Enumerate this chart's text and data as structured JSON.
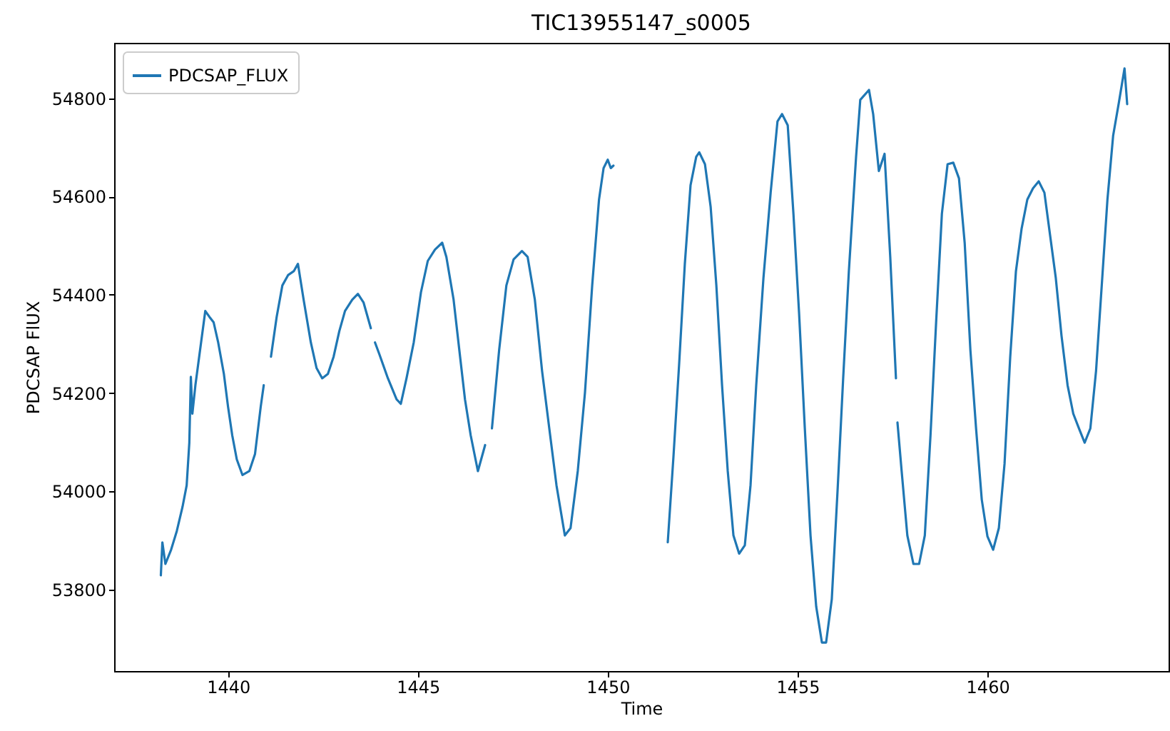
{
  "chart_data": {
    "type": "line",
    "title": "TIC13955147_s0005",
    "xlabel": "Time",
    "ylabel": "PDCSAP FlUX",
    "legend": "top left",
    "grid": false,
    "xlim": [
      1437.0,
      1464.77
    ],
    "ylim": [
      53634,
      54913
    ],
    "xticks": [
      1440,
      1445,
      1450,
      1455,
      1460
    ],
    "yticks": [
      53800,
      54000,
      54200,
      54400,
      54600,
      54800
    ],
    "series": [
      {
        "name": "PDCSAP_FLUX",
        "color": "#1f77b4",
        "x": [
          1438.23,
          1438.27,
          1438.35,
          1438.5,
          1438.65,
          1438.8,
          1438.91,
          1438.98,
          1439.02,
          1439.06,
          1439.14,
          1439.25,
          1439.4,
          1439.51,
          1439.62,
          1439.74,
          1439.89,
          1440.0,
          1440.11,
          1440.23,
          1440.38,
          1440.56,
          1440.71,
          1440.86,
          1440.94,
          1441.03,
          1441.13,
          1441.28,
          1441.43,
          1441.58,
          1441.73,
          1441.84,
          1441.99,
          1442.18,
          1442.33,
          1442.48,
          1442.63,
          1442.78,
          1442.93,
          1443.08,
          1443.27,
          1443.42,
          1443.57,
          1443.76,
          1443.82,
          1443.87,
          1443.98,
          1444.21,
          1444.44,
          1444.55,
          1444.7,
          1444.89,
          1445.08,
          1445.26,
          1445.45,
          1445.64,
          1445.75,
          1445.94,
          1446.09,
          1446.24,
          1446.39,
          1446.58,
          1446.77,
          1446.86,
          1446.95,
          1447.14,
          1447.33,
          1447.52,
          1447.74,
          1447.89,
          1448.08,
          1448.27,
          1448.46,
          1448.65,
          1448.87,
          1449.02,
          1449.21,
          1449.4,
          1449.59,
          1449.77,
          1449.89,
          1450.0,
          1450.08,
          1450.15,
          1450.9,
          1451.58,
          1451.73,
          1451.88,
          1452.03,
          1452.18,
          1452.33,
          1452.41,
          1452.56,
          1452.71,
          1452.86,
          1453.01,
          1453.16,
          1453.31,
          1453.46,
          1453.61,
          1453.76,
          1453.91,
          1454.1,
          1454.29,
          1454.47,
          1454.59,
          1454.74,
          1454.89,
          1455.04,
          1455.19,
          1455.34,
          1455.49,
          1455.64,
          1455.75,
          1455.9,
          1456.05,
          1456.2,
          1456.35,
          1456.54,
          1456.65,
          1456.88,
          1456.99,
          1457.14,
          1457.29,
          1457.44,
          1457.59,
          1457.61,
          1457.63,
          1457.74,
          1457.89,
          1458.05,
          1458.2,
          1458.35,
          1458.5,
          1458.65,
          1458.8,
          1458.95,
          1459.1,
          1459.25,
          1459.4,
          1459.55,
          1459.7,
          1459.85,
          1460.0,
          1460.15,
          1460.3,
          1460.45,
          1460.6,
          1460.75,
          1460.9,
          1461.05,
          1461.2,
          1461.35,
          1461.5,
          1461.65,
          1461.8,
          1461.95,
          1462.11,
          1462.26,
          1462.41,
          1462.56,
          1462.71,
          1462.86,
          1463.01,
          1463.16,
          1463.31,
          1463.46,
          1463.61,
          1463.68
        ],
        "values": [
          53829,
          53896,
          53852,
          53881,
          53919,
          53968,
          54012,
          54099,
          54233,
          54158,
          54216,
          54280,
          54367,
          54355,
          54344,
          54303,
          54239,
          54172,
          54114,
          54065,
          54033,
          54041,
          54076,
          54172,
          54216,
          null,
          54274,
          54355,
          54419,
          54440,
          54448,
          54463,
          54390,
          54303,
          54251,
          54230,
          54239,
          54274,
          54326,
          54367,
          54390,
          54402,
          54384,
          54332,
          null,
          54303,
          54280,
          54230,
          54187,
          54178,
          54230,
          54303,
          54405,
          54469,
          54492,
          54506,
          54477,
          54390,
          54288,
          54187,
          54114,
          54041,
          54094,
          null,
          54128,
          54288,
          54419,
          54472,
          54489,
          54477,
          54390,
          54245,
          54128,
          54012,
          53910,
          53925,
          54041,
          54201,
          54419,
          54594,
          54658,
          54675,
          54658,
          54663,
          null,
          53896,
          54070,
          54259,
          54463,
          54623,
          54681,
          54690,
          54666,
          54579,
          54419,
          54216,
          54041,
          53910,
          53873,
          53890,
          54012,
          54216,
          54434,
          54608,
          54753,
          54768,
          54745,
          54565,
          54361,
          54128,
          53910,
          53765,
          53692,
          53692,
          53780,
          53998,
          54230,
          54448,
          54681,
          54797,
          54817,
          54768,
          54652,
          54687,
          54477,
          54230,
          null,
          54140,
          54041,
          53910,
          53852,
          53852,
          53910,
          54114,
          54347,
          54565,
          54666,
          54669,
          54637,
          54506,
          54288,
          54128,
          53983,
          53908,
          53881,
          53925,
          54056,
          54274,
          54448,
          54535,
          54594,
          54617,
          54631,
          54608,
          54521,
          54434,
          54317,
          54216,
          54158,
          54128,
          54099,
          54128,
          54245,
          54419,
          54594,
          54724,
          54791,
          54861,
          54788
        ]
      }
    ]
  }
}
